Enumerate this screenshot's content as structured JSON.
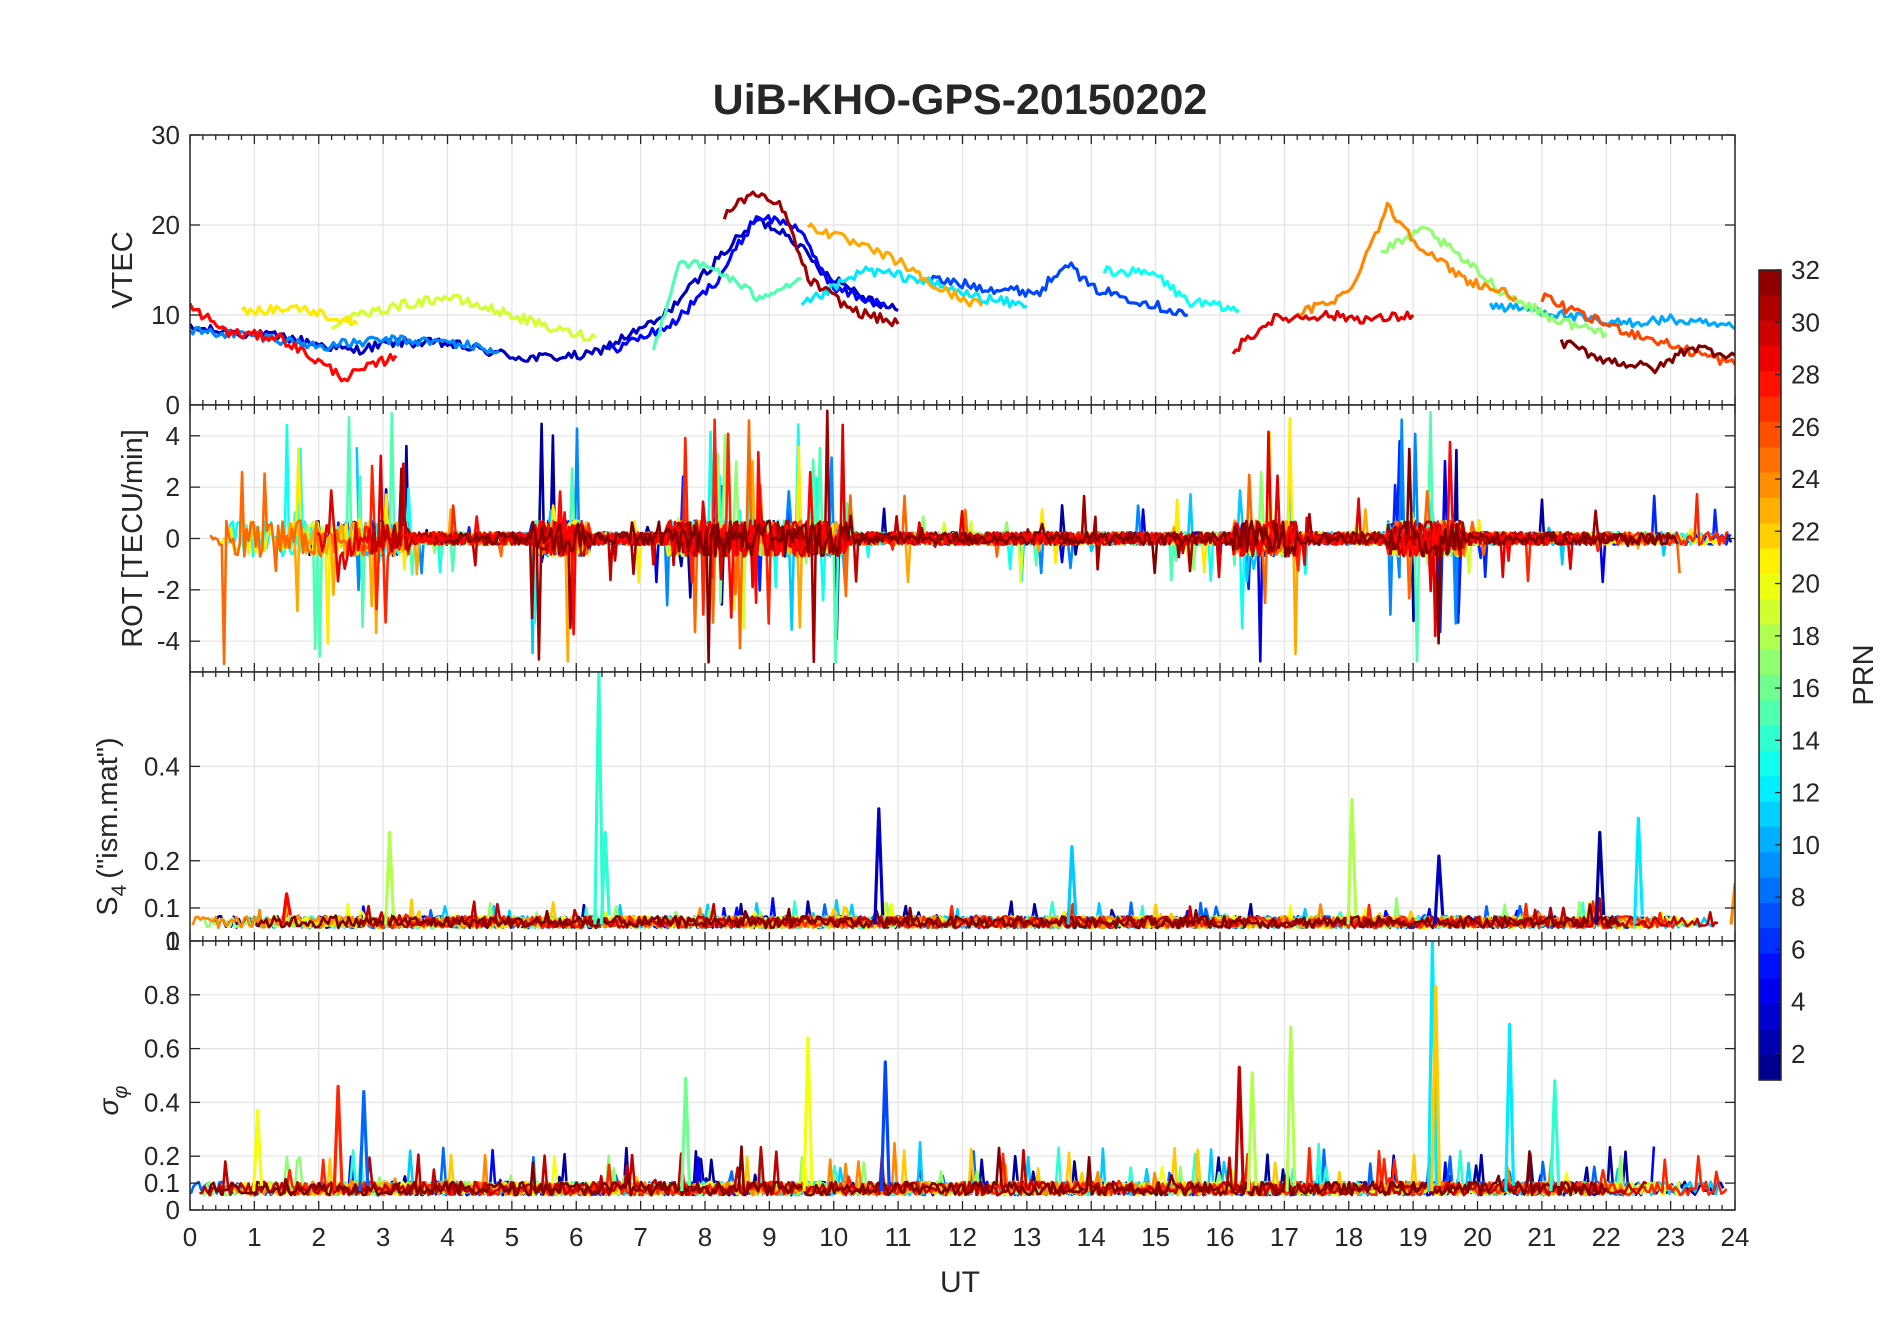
{
  "chart_data": {
    "title": "UiB-KHO-GPS-20150202",
    "xlabel": "UT",
    "xlim": [
      0,
      24
    ],
    "xticks": [
      "0",
      "1",
      "2",
      "3",
      "4",
      "5",
      "6",
      "7",
      "8",
      "9",
      "10",
      "11",
      "12",
      "13",
      "14",
      "15",
      "16",
      "17",
      "18",
      "19",
      "20",
      "21",
      "22",
      "23",
      "24"
    ],
    "colorbar": {
      "label": "PRN",
      "range": [
        1,
        32
      ],
      "ticks": [
        "2",
        "4",
        "6",
        "8",
        "10",
        "12",
        "14",
        "16",
        "18",
        "20",
        "22",
        "24",
        "26",
        "28",
        "30",
        "32"
      ],
      "colormap": "jet"
    },
    "panels": [
      {
        "type": "line",
        "ylabel": "VTEC",
        "ylim": [
          0,
          30
        ],
        "yticks": [
          "0",
          "10",
          "20",
          "30"
        ],
        "grid": true,
        "series": [
          {
            "prn": 3,
            "points": [
              [
                0,
                8.5
              ],
              [
                1.5,
                7.5
              ],
              [
                2.5,
                6
              ],
              [
                3.2,
                7
              ],
              [
                4,
                6.8
              ],
              [
                5.2,
                5.2
              ],
              [
                6.2,
                5.5
              ],
              [
                7.3,
                9.5
              ],
              [
                8.3,
                17
              ],
              [
                8.8,
                20.5
              ],
              [
                9.3,
                19
              ],
              [
                9.8,
                15
              ],
              [
                10.5,
                12
              ],
              [
                11,
                10.5
              ]
            ]
          },
          {
            "prn": 5,
            "points": [
              [
                6.5,
                6
              ],
              [
                7.5,
                9
              ],
              [
                8.2,
                14
              ],
              [
                8.8,
                21
              ],
              [
                9.4,
                20
              ],
              [
                10,
                13
              ],
              [
                10.8,
                11
              ]
            ]
          },
          {
            "prn": 7,
            "points": [
              [
                11.5,
                14
              ],
              [
                12.4,
                13
              ],
              [
                13.2,
                12.5
              ],
              [
                13.6,
                16
              ],
              [
                14,
                13
              ],
              [
                14.8,
                11.5
              ],
              [
                15.5,
                10
              ]
            ]
          },
          {
            "prn": 9,
            "points": [
              [
                0,
                8.2
              ],
              [
                1,
                7.8
              ],
              [
                2,
                6.5
              ],
              [
                3,
                7.2
              ],
              [
                4,
                7
              ],
              [
                4.8,
                6
              ]
            ]
          },
          {
            "prn": 10,
            "points": [
              [
                20.2,
                11
              ],
              [
                21,
                10.5
              ],
              [
                22,
                9
              ],
              [
                23,
                9.5
              ],
              [
                24,
                8.5
              ]
            ]
          },
          {
            "prn": 12,
            "points": [
              [
                9.5,
                11
              ],
              [
                10.5,
                15
              ],
              [
                11.3,
                14
              ],
              [
                12.2,
                12
              ],
              [
                13,
                11
              ]
            ]
          },
          {
            "prn": 13,
            "points": [
              [
                14.2,
                15
              ],
              [
                15,
                14.5
              ],
              [
                15.5,
                11.5
              ],
              [
                16.3,
                10.5
              ]
            ]
          },
          {
            "prn": 15,
            "points": [
              [
                7.2,
                6
              ],
              [
                7.6,
                16
              ],
              [
                8.2,
                15
              ],
              [
                8.8,
                12
              ],
              [
                9.5,
                14
              ]
            ]
          },
          {
            "prn": 17,
            "points": [
              [
                18.5,
                17
              ],
              [
                19.2,
                19.5
              ],
              [
                19.8,
                16
              ],
              [
                20.4,
                12.5
              ],
              [
                21.2,
                9.5
              ],
              [
                22,
                8
              ]
            ]
          },
          {
            "prn": 19,
            "points": [
              [
                2.2,
                9
              ],
              [
                3.2,
                11
              ],
              [
                4,
                12
              ],
              [
                5,
                10
              ],
              [
                5.6,
                8.5
              ],
              [
                6.3,
                7.5
              ]
            ]
          },
          {
            "prn": 21,
            "points": [
              [
                0.8,
                10.5
              ],
              [
                1.7,
                10.8
              ],
              [
                2.6,
                9
              ]
            ]
          },
          {
            "prn": 23,
            "points": [
              [
                9.6,
                20
              ],
              [
                10.3,
                18
              ],
              [
                11,
                16
              ],
              [
                11.6,
                13
              ],
              [
                12.3,
                11
              ]
            ]
          },
          {
            "prn": 24,
            "points": [
              [
                17.2,
                10
              ],
              [
                18,
                12.5
              ],
              [
                18.6,
                22
              ],
              [
                19.2,
                17
              ],
              [
                19.8,
                14
              ],
              [
                20.6,
                12
              ]
            ]
          },
          {
            "prn": 26,
            "points": [
              [
                21,
                12
              ],
              [
                21.6,
                10
              ],
              [
                22.4,
                8
              ],
              [
                23.3,
                6
              ],
              [
                24,
                4.5
              ]
            ]
          },
          {
            "prn": 28,
            "points": [
              [
                0,
                11
              ],
              [
                0.6,
                8
              ],
              [
                1.4,
                7.5
              ],
              [
                2.4,
                3
              ],
              [
                3.2,
                5.5
              ]
            ]
          },
          {
            "prn": 29,
            "points": [
              [
                16.2,
                6
              ],
              [
                16.8,
                9.5
              ],
              [
                17.6,
                10
              ],
              [
                18.4,
                9.5
              ],
              [
                19,
                10
              ]
            ]
          },
          {
            "prn": 31,
            "points": [
              [
                8.3,
                21
              ],
              [
                8.7,
                23.5
              ],
              [
                9.2,
                22
              ],
              [
                9.6,
                14
              ],
              [
                10.3,
                10.5
              ],
              [
                11,
                9
              ]
            ]
          },
          {
            "prn": 32,
            "points": [
              [
                21.3,
                7
              ],
              [
                22,
                5
              ],
              [
                22.8,
                4
              ],
              [
                23.3,
                6.5
              ],
              [
                24,
                5.5
              ]
            ]
          }
        ]
      },
      {
        "type": "line",
        "ylabel": "ROT [TECU/min]",
        "ylim": [
          -5.2,
          5.2
        ],
        "yticks": [
          "-4",
          "-2",
          "0",
          "2",
          "4"
        ],
        "grid": true,
        "active_windows_ut": [
          [
            0,
            3.4
          ],
          [
            5.3,
            6.2
          ],
          [
            7.4,
            10.2
          ],
          [
            16.2,
            17.2
          ],
          [
            18.6,
            19.8
          ]
        ]
      },
      {
        "type": "line",
        "ylabel": "S4 (\"ism.mat\")",
        "ylabel_base": "S",
        "ylabel_sub": "4",
        "ylabel_rest": "(\"ism.mat\")",
        "ylim": [
          0.03,
          0.6
        ],
        "yticks": [
          "0.1",
          "0.2",
          "0.4"
        ],
        "grid": true,
        "peaks": [
          {
            "ut": 1.5,
            "value": 0.13,
            "prn": 28
          },
          {
            "ut": 3.1,
            "value": 0.26,
            "prn": 18
          },
          {
            "ut": 6.35,
            "value": 0.6,
            "prn": 14
          },
          {
            "ut": 6.45,
            "value": 0.26,
            "prn": 14
          },
          {
            "ut": 10.7,
            "value": 0.31,
            "prn": 3
          },
          {
            "ut": 13.7,
            "value": 0.23,
            "prn": 11
          },
          {
            "ut": 18.05,
            "value": 0.33,
            "prn": 18
          },
          {
            "ut": 19.4,
            "value": 0.21,
            "prn": 3
          },
          {
            "ut": 21.9,
            "value": 0.26,
            "prn": 2
          },
          {
            "ut": 22.5,
            "value": 0.29,
            "prn": 12
          },
          {
            "ut": 24,
            "value": 0.15,
            "prn": 24
          }
        ]
      },
      {
        "type": "line",
        "ylabel": "σφ",
        "ylabel_sigma": "σ",
        "ylabel_sub": "φ",
        "ylim": [
          0,
          1
        ],
        "yticks": [
          "0",
          "0.1",
          "0.2",
          "0.4",
          "0.6",
          "0.8",
          "1"
        ],
        "top_label_extra": "0",
        "grid": true,
        "peaks": [
          {
            "ut": 1.05,
            "value": 0.37,
            "prn": 20
          },
          {
            "ut": 2.3,
            "value": 0.46,
            "prn": 27
          },
          {
            "ut": 2.7,
            "value": 0.44,
            "prn": 8
          },
          {
            "ut": 7.7,
            "value": 0.49,
            "prn": 16
          },
          {
            "ut": 9.6,
            "value": 0.64,
            "prn": 20
          },
          {
            "ut": 10.8,
            "value": 0.55,
            "prn": 7
          },
          {
            "ut": 16.3,
            "value": 0.53,
            "prn": 30
          },
          {
            "ut": 16.5,
            "value": 0.51,
            "prn": 18
          },
          {
            "ut": 17.1,
            "value": 0.68,
            "prn": 18
          },
          {
            "ut": 19.3,
            "value": 1.0,
            "prn": 12
          },
          {
            "ut": 19.35,
            "value": 0.83,
            "prn": 22
          },
          {
            "ut": 20.5,
            "value": 0.69,
            "prn": 12
          },
          {
            "ut": 21.2,
            "value": 0.48,
            "prn": 14
          }
        ]
      }
    ]
  }
}
